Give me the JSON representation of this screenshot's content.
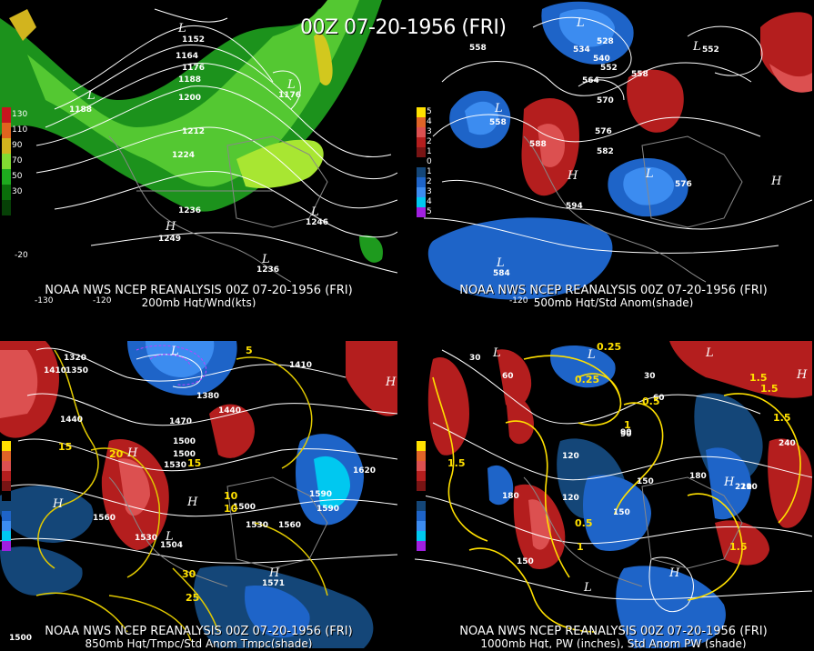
{
  "header": {
    "title": "00Z 07-20-1956 (FRI)"
  },
  "panels": {
    "p1": {
      "line1": "NOAA NWS NCEP REANALYSIS 00Z 07-20-1956 (FRI)",
      "line2": "200mb Hgt/Wnd(kts)",
      "legend": [
        "130",
        "110",
        "90",
        "70",
        "50",
        "30"
      ],
      "legend_colors": [
        "#c8141e",
        "#e0641e",
        "#d2b41e",
        "#82dc32",
        "#1eaa1e",
        "#0a6e0a"
      ],
      "contour_labels": [
        "1152",
        "1164",
        "1176",
        "1188",
        "1200",
        "1212",
        "1224",
        "1236",
        "1188",
        "1176",
        "1246",
        "1249",
        "1236"
      ],
      "centers": [
        "L",
        "L",
        "L",
        "L",
        "H",
        "L"
      ],
      "lon_labels": [
        "-130",
        "-120",
        "-20"
      ]
    },
    "p2": {
      "line1": "NOAA NWS NCEP REANALYSIS 00Z 07-20-1956 (FRI)",
      "line2": "500mb Hgt/Std Anom(shade)",
      "legend": [
        "5",
        "4",
        "3",
        "2",
        "1",
        "0",
        "1",
        "2",
        "3",
        "4",
        "5"
      ],
      "legend_colors": [
        "#ffe000",
        "#e06428",
        "#dc5050",
        "#b41e1e",
        "#781414",
        "#000000",
        "#144678",
        "#1e64c8",
        "#3c8cf0",
        "#00c8f0",
        "#a020e0"
      ],
      "contour_labels": [
        "558",
        "534",
        "528",
        "540",
        "552",
        "558",
        "564",
        "570",
        "576",
        "582",
        "588",
        "594",
        "558",
        "576",
        "552",
        "584"
      ],
      "centers": [
        "L",
        "L",
        "L",
        "H",
        "L",
        "H",
        "L"
      ],
      "lon_labels": [
        "-120"
      ]
    },
    "p3": {
      "line1": "NOAA NWS NCEP REANALYSIS 00Z 07-20-1956 (FRI)",
      "line2": "850mb Hgt/Tmpc/Std Anom Tmpc(shade)",
      "contour_labels": [
        "1320",
        "1410",
        "1350",
        "1440",
        "1470",
        "1500",
        "1530",
        "1560",
        "1530",
        "1500",
        "1530",
        "1560",
        "1590",
        "1590",
        "1620",
        "1410",
        "1380",
        "1440",
        "1500",
        "1571",
        "1504",
        "1500"
      ],
      "temp_labels": [
        "5",
        "10",
        "15",
        "20",
        "25",
        "30",
        "10",
        "15"
      ],
      "centers": [
        "L",
        "H",
        "H",
        "H",
        "L",
        "H",
        "H"
      ]
    },
    "p4": {
      "line1": "NOAA NWS NCEP REANALYSIS 00Z 07-20-1956 (FRI)",
      "line2": "1000mb Hgt, PW (inches), Std Anom PW (shade)",
      "contour_labels": [
        "30",
        "60",
        "90",
        "120",
        "150",
        "180",
        "210",
        "240",
        "150",
        "180",
        "150",
        "120",
        "90",
        "60",
        "30",
        "210"
      ],
      "pw_labels": [
        "0.25",
        "0.25",
        "0.5",
        "1",
        "1.5",
        "1.5",
        "0.5",
        "1",
        "1.5",
        "1.5",
        "1.5"
      ],
      "centers": [
        "L",
        "L",
        "L",
        "H",
        "H",
        "H",
        "L"
      ]
    }
  }
}
